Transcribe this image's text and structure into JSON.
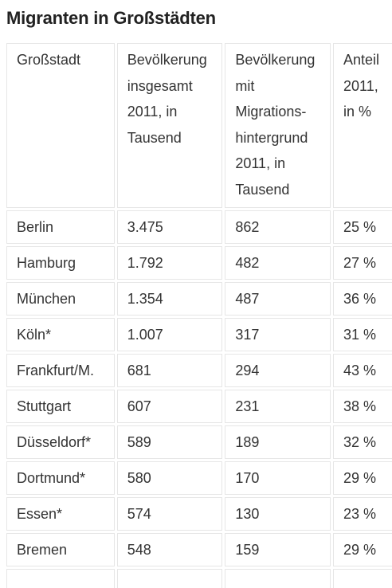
{
  "title": "Migranten in Großstädten",
  "table": {
    "headers": [
      "Großstadt",
      "Bevölkerung insgesamt 2011, in Tausend",
      "Bevölkerung mit Migrations-hintergrund 2011, in Tausend",
      "Anteil 2011, in %"
    ],
    "rows": [
      [
        "Berlin",
        "3.475",
        "862",
        "25 %"
      ],
      [
        "Hamburg",
        "1.792",
        "482",
        "27 %"
      ],
      [
        "München",
        "1.354",
        "487",
        "36 %"
      ],
      [
        "Köln*",
        "1.007",
        "317",
        "31 %"
      ],
      [
        "Frankfurt/M.",
        "681",
        "294",
        "43 %"
      ],
      [
        "Stuttgart",
        "607",
        "231",
        "38 %"
      ],
      [
        "Düsseldorf*",
        "589",
        "189",
        "32 %"
      ],
      [
        "Dortmund*",
        "580",
        "170",
        "29 %"
      ],
      [
        "Essen*",
        "574",
        "130",
        "23 %"
      ],
      [
        "Bremen",
        "548",
        "159",
        "29 %"
      ]
    ]
  }
}
